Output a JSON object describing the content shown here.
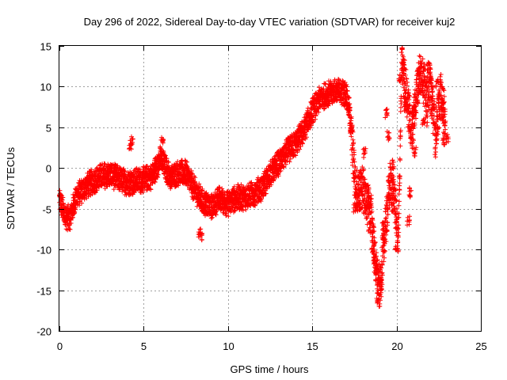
{
  "chart_data": {
    "type": "scatter",
    "title": "Day 296 of 2022, Sidereal Day-to-day VTEC variation (SDTVAR) for receiver kuj2",
    "xlabel": "GPS time / hours",
    "ylabel": "SDTVAR / TECUs",
    "xlim": [
      0,
      25
    ],
    "ylim": [
      -20,
      15
    ],
    "xticks": [
      "0",
      "5",
      "10",
      "15",
      "20",
      "25"
    ],
    "yticks": [
      "15",
      "10",
      "5",
      "0",
      "-5",
      "-10",
      "-15",
      "-20"
    ],
    "grid": true,
    "marker": "plus",
    "series": [
      {
        "name": "kuj2",
        "color": "#ff0000",
        "keypoints": [
          [
            0.0,
            -3.8
          ],
          [
            0.3,
            -5.8
          ],
          [
            0.6,
            -6.2
          ],
          [
            1.0,
            -3.5
          ],
          [
            1.5,
            -2.4
          ],
          [
            2.0,
            -1.6
          ],
          [
            2.5,
            -1.0
          ],
          [
            3.0,
            -0.8
          ],
          [
            3.5,
            -1.3
          ],
          [
            4.0,
            -1.8
          ],
          [
            4.5,
            -1.6
          ],
          [
            5.0,
            -1.4
          ],
          [
            5.5,
            -1.0
          ],
          [
            6.0,
            1.2
          ],
          [
            6.3,
            0.0
          ],
          [
            6.6,
            -1.2
          ],
          [
            7.0,
            -0.6
          ],
          [
            7.5,
            -0.6
          ],
          [
            8.0,
            -2.6
          ],
          [
            8.5,
            -4.2
          ],
          [
            9.0,
            -4.8
          ],
          [
            9.5,
            -3.8
          ],
          [
            10.0,
            -4.4
          ],
          [
            10.5,
            -3.6
          ],
          [
            11.0,
            -3.6
          ],
          [
            11.5,
            -3.2
          ],
          [
            12.0,
            -2.4
          ],
          [
            12.5,
            -0.8
          ],
          [
            13.0,
            0.6
          ],
          [
            13.5,
            2.0
          ],
          [
            14.0,
            3.0
          ],
          [
            14.5,
            4.6
          ],
          [
            15.0,
            7.0
          ],
          [
            15.5,
            8.6
          ],
          [
            16.0,
            9.2
          ],
          [
            16.5,
            9.4
          ],
          [
            17.0,
            9.2
          ],
          [
            17.2,
            7.0
          ],
          [
            17.4,
            2.0
          ],
          [
            17.6,
            -3.0
          ],
          [
            17.9,
            -2.0
          ],
          [
            18.2,
            -4.0
          ],
          [
            18.5,
            -6.0
          ],
          [
            18.8,
            -13.0
          ],
          [
            19.0,
            -15.0
          ],
          [
            19.3,
            -8.0
          ],
          [
            19.6,
            -2.0
          ],
          [
            19.9,
            -4.0
          ],
          [
            20.1,
            -9.5
          ],
          [
            20.3,
            13.0
          ],
          [
            20.6,
            9.0
          ],
          [
            20.9,
            4.0
          ],
          [
            21.2,
            10.0
          ],
          [
            21.5,
            12.0
          ],
          [
            21.8,
            8.0
          ],
          [
            22.0,
            11.0
          ],
          [
            22.3,
            4.0
          ],
          [
            22.6,
            9.0
          ],
          [
            22.9,
            6.0
          ]
        ],
        "extra_excursions": [
          [
            4.2,
            2.8
          ],
          [
            4.3,
            3.3
          ],
          [
            6.1,
            3.5
          ],
          [
            8.3,
            -8.0
          ],
          [
            8.4,
            -8.4
          ],
          [
            17.3,
            5.0
          ],
          [
            17.8,
            -4.6
          ],
          [
            18.1,
            1.8
          ],
          [
            18.4,
            -4.2
          ],
          [
            18.6,
            -10.0
          ],
          [
            18.7,
            -11.5
          ],
          [
            18.9,
            -16.0
          ],
          [
            19.1,
            -14.0
          ],
          [
            19.4,
            6.8
          ],
          [
            19.5,
            4.0
          ],
          [
            19.8,
            0.5
          ],
          [
            20.0,
            -10.0
          ],
          [
            20.2,
            11.0
          ],
          [
            20.4,
            12.5
          ],
          [
            20.5,
            7.5
          ],
          [
            20.8,
            -3.0
          ],
          [
            21.0,
            6.5
          ],
          [
            21.3,
            12.2
          ],
          [
            21.6,
            5.5
          ],
          [
            21.9,
            12.5
          ],
          [
            22.1,
            6.8
          ],
          [
            22.4,
            10.5
          ],
          [
            22.7,
            8.0
          ],
          [
            22.8,
            3.4
          ],
          [
            23.0,
            3.6
          ],
          [
            19.2,
            -7.0
          ],
          [
            18.3,
            -2.6
          ],
          [
            17.5,
            -4.8
          ],
          [
            20.7,
            -6.4
          ],
          [
            21.1,
            2.0
          ]
        ],
        "jitter_amplitude": 1.6,
        "samples_per_hour": 90
      }
    ]
  }
}
